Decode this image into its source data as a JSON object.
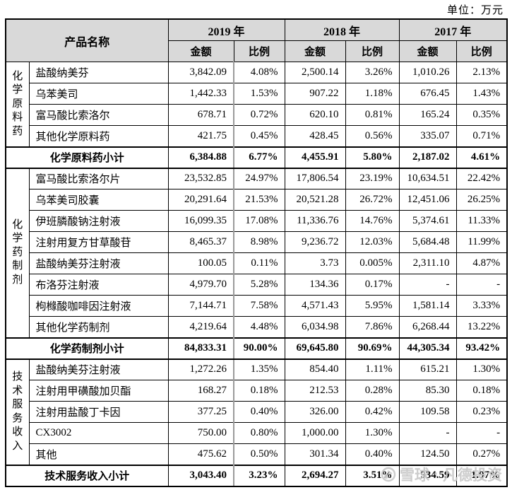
{
  "page": {
    "unit_label": "单位：万元"
  },
  "table": {
    "header": {
      "product_col": "产品名称",
      "years": [
        "2019 年",
        "2018 年",
        "2017 年"
      ],
      "amount_label": "金额",
      "ratio_label": "比例"
    },
    "groups": [
      {
        "name": "化学原料药",
        "rows": [
          {
            "name": "盐酸纳美芬",
            "values": [
              "3,842.09",
              "4.08%",
              "2,500.14",
              "3.26%",
              "1,010.26",
              "2.13%"
            ]
          },
          {
            "name": "乌苯美司",
            "values": [
              "1,442.33",
              "1.53%",
              "907.22",
              "1.18%",
              "676.45",
              "1.43%"
            ]
          },
          {
            "name": "富马酸比索洛尔",
            "values": [
              "678.71",
              "0.72%",
              "620.10",
              "0.81%",
              "165.24",
              "0.35%"
            ]
          },
          {
            "name": "其他化学原料药",
            "values": [
              "421.75",
              "0.45%",
              "428.45",
              "0.56%",
              "335.07",
              "0.71%"
            ]
          }
        ],
        "subtotal": {
          "label": "化学原料药小计",
          "values": [
            "6,384.88",
            "6.77%",
            "4,455.91",
            "5.80%",
            "2,187.02",
            "4.61%"
          ]
        }
      },
      {
        "name": "化学药制剂",
        "rows": [
          {
            "name": "富马酸比索洛尔片",
            "values": [
              "23,532.85",
              "24.97%",
              "17,806.54",
              "23.19%",
              "10,634.51",
              "22.42%"
            ]
          },
          {
            "name": "乌苯美司胶囊",
            "values": [
              "20,291.64",
              "21.53%",
              "20,521.28",
              "26.72%",
              "12,451.06",
              "26.25%"
            ]
          },
          {
            "name": "伊班膦酸钠注射液",
            "values": [
              "16,099.35",
              "17.08%",
              "11,336.76",
              "14.76%",
              "5,374.61",
              "11.33%"
            ]
          },
          {
            "name": "注射用复方甘草酸苷",
            "values": [
              "8,465.37",
              "8.98%",
              "9,236.72",
              "12.03%",
              "5,684.48",
              "11.99%"
            ]
          },
          {
            "name": "盐酸纳美芬注射液",
            "values": [
              "100.05",
              "0.11%",
              "3.73",
              "0.005%",
              "2,311.10",
              "4.87%"
            ]
          },
          {
            "name": "布洛芬注射液",
            "values": [
              "4,979.70",
              "5.28%",
              "134.36",
              "0.17%",
              "-",
              "-"
            ]
          },
          {
            "name": "枸橼酸咖啡因注射液",
            "values": [
              "7,144.71",
              "7.58%",
              "4,571.43",
              "5.95%",
              "1,581.14",
              "3.33%"
            ]
          },
          {
            "name": "其他化学药制剂",
            "values": [
              "4,219.64",
              "4.48%",
              "6,034.98",
              "7.86%",
              "6,268.44",
              "13.22%"
            ]
          }
        ],
        "subtotal": {
          "label": "化学药制剂小计",
          "values": [
            "84,833.31",
            "90.00%",
            "69,645.80",
            "90.69%",
            "44,305.34",
            "93.42%"
          ]
        }
      },
      {
        "name": "技术服务收入",
        "rows": [
          {
            "name": "盐酸纳美芬注射液",
            "values": [
              "1,272.26",
              "1.35%",
              "854.40",
              "1.11%",
              "615.21",
              "1.30%"
            ]
          },
          {
            "name": "注射用甲磺酸加贝酯",
            "values": [
              "168.27",
              "0.18%",
              "212.53",
              "0.28%",
              "85.30",
              "0.18%"
            ]
          },
          {
            "name": "注射用盐酸丁卡因",
            "values": [
              "377.25",
              "0.40%",
              "326.00",
              "0.42%",
              "109.58",
              "0.23%"
            ]
          },
          {
            "name": "CX3002",
            "values": [
              "750.00",
              "0.80%",
              "1,000.00",
              "1.30%",
              "-",
              "-"
            ]
          },
          {
            "name": "其他",
            "values": [
              "475.62",
              "0.50%",
              "301.34",
              "0.40%",
              "124.50",
              "0.27%"
            ]
          }
        ],
        "subtotal": {
          "label": "技术服务收入小计",
          "values": [
            "3,043.40",
            "3.23%",
            "2,694.27",
            "3.51%",
            "934.59",
            "1.97%"
          ]
        }
      }
    ]
  },
  "watermark": {
    "brand": "雪球",
    "separator": "·",
    "user": "凡德投资"
  },
  "colors": {
    "header_bg": "#d9d9d9",
    "border": "#000000",
    "gray_divider": "#9b9b9b",
    "watermark": "#c7c7c7"
  }
}
